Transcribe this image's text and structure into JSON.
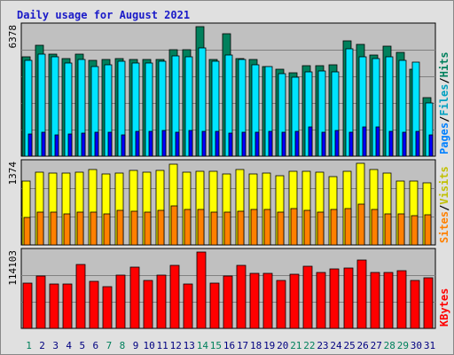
{
  "chart_data": {
    "title": "Daily usage for August 2021",
    "type": "bar",
    "days": [
      "1",
      "2",
      "3",
      "4",
      "5",
      "6",
      "7",
      "8",
      "9",
      "10",
      "11",
      "12",
      "13",
      "14",
      "15",
      "16",
      "17",
      "18",
      "19",
      "20",
      "21",
      "22",
      "23",
      "24",
      "25",
      "26",
      "27",
      "28",
      "29",
      "30",
      "31"
    ],
    "weekend_days": [
      "1",
      "7",
      "8",
      "14",
      "15",
      "21",
      "22",
      "28",
      "29"
    ],
    "panels": [
      {
        "name": "pages-files-hits",
        "ymax_label": "6378",
        "ymax": 6378,
        "series": [
          {
            "name": "Hits",
            "color": "#00805c",
            "values": [
              4900,
              5440,
              5040,
              4820,
              5040,
              4720,
              4740,
              4820,
              4740,
              4740,
              4780,
              5240,
              5240,
              6360,
              4740,
              6040,
              4820,
              4740,
              4400,
              4300,
              4120,
              4460,
              4460,
              4520,
              5660,
              5500,
              4990,
              5400,
              5120,
              4280,
              2900
            ]
          },
          {
            "name": "Files",
            "color": "#00e4ff",
            "values": [
              4700,
              5040,
              4900,
              4580,
              4760,
              4400,
              4480,
              4660,
              4600,
              4600,
              4660,
              4920,
              4900,
              5320,
              4680,
              4980,
              4740,
              4520,
              4400,
              4060,
              3900,
              4160,
              4200,
              4140,
              5300,
              4900,
              4800,
              4880,
              4720,
              4640,
              2620
            ]
          },
          {
            "name": "Pages",
            "color": "#0000ff",
            "values": [
              1100,
              1180,
              1060,
              1080,
              1150,
              1160,
              1160,
              1070,
              1230,
              1230,
              1250,
              1180,
              1250,
              1220,
              1230,
              1140,
              1180,
              1180,
              1220,
              1200,
              1230,
              1450,
              1200,
              1260,
              1180,
              1460,
              1430,
              1230,
              1180,
              1230,
              1070
            ]
          }
        ],
        "legend": [
          {
            "label": "Hits",
            "color": "#00805c"
          },
          {
            "label": "Files",
            "color": "#00a0c0"
          },
          {
            "label": "Pages",
            "color": "#0080ff"
          }
        ]
      },
      {
        "name": "visits-sites",
        "ymax_label": "1374",
        "ymax": 1374,
        "series": [
          {
            "name": "Visits",
            "color": "#ffff00",
            "values": [
              1070,
              1230,
              1210,
              1210,
              1220,
              1270,
              1200,
              1210,
              1250,
              1220,
              1260,
              1360,
              1230,
              1240,
              1240,
              1190,
              1270,
              1200,
              1210,
              1160,
              1240,
              1240,
              1220,
              1150,
              1240,
              1370,
              1270,
              1210,
              1080,
              1070,
              1040
            ]
          },
          {
            "name": "Sites",
            "color": "#ff8000",
            "values": [
              470,
              550,
              560,
              520,
              560,
              560,
              530,
              580,
              570,
              560,
              580,
              660,
              600,
              600,
              550,
              560,
              570,
              600,
              600,
              550,
              610,
              580,
              560,
              590,
              610,
              690,
              600,
              520,
              520,
              490,
              510
            ]
          }
        ],
        "legend": [
          {
            "label": "Visits",
            "color": "#c0c000"
          },
          {
            "label": "Sites",
            "color": "#ff8000"
          }
        ]
      },
      {
        "name": "kbytes",
        "ymax_label": "114103",
        "ymax": 114103,
        "series": [
          {
            "name": "KBytes",
            "color": "#ff0000",
            "values": [
              68000,
              78000,
              66000,
              66000,
              96000,
              70000,
              62000,
              80000,
              91000,
              71000,
              80000,
              94000,
              66000,
              114000,
              68000,
              78000,
              94000,
              82000,
              82000,
              71000,
              81000,
              93000,
              84000,
              89000,
              90000,
              102000,
              84000,
              84000,
              86000,
              72000,
              75000
            ]
          }
        ],
        "legend": [
          {
            "label": "KBytes",
            "color": "#ff0000"
          }
        ]
      }
    ]
  }
}
